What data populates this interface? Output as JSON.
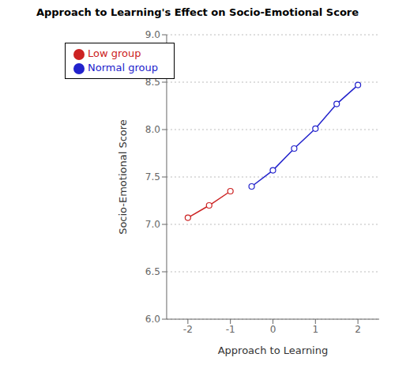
{
  "chart_data": {
    "type": "line",
    "title": "Approach to Learning's Effect on Socio-Emotional Score",
    "x_label": "Approach to Learning",
    "y_label": "Socio-Emotional Score",
    "xlim": [
      -2.5,
      2.5
    ],
    "ylim": [
      6.0,
      9.0
    ],
    "xticks": [
      -2,
      -1,
      0,
      1,
      2
    ],
    "yticks": [
      {
        "value": 6.0,
        "label": "6.0"
      },
      6.5,
      {
        "value": 7.0,
        "label": "7.0"
      },
      7.5,
      {
        "value": 8.0,
        "label": "8.0"
      },
      8.5,
      {
        "value": 9.0,
        "label": "9.0"
      }
    ],
    "grid": "y",
    "legend": "upper left",
    "series": [
      {
        "name": "Normal group",
        "color": "#2222CC",
        "marker": "circle",
        "x": [
          -0.5,
          0.0,
          0.5,
          1.0,
          1.5,
          2.0
        ],
        "values": [
          7.4,
          7.57,
          7.8,
          8.01,
          8.27,
          8.47
        ]
      },
      {
        "name": "Low group",
        "color": "#CC2222",
        "marker": "circle",
        "x": [
          -2.0,
          -1.5,
          -1.0
        ],
        "values": [
          7.07,
          7.2,
          7.35
        ]
      }
    ]
  }
}
